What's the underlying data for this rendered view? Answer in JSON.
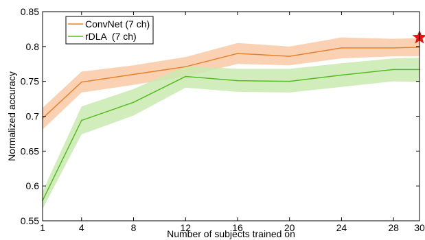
{
  "chart_data": {
    "type": "line",
    "xlabel": "Number of subjects trained on",
    "ylabel": "Normalized accuracy",
    "xlim": [
      1,
      30
    ],
    "ylim": [
      0.55,
      0.85
    ],
    "xticks": [
      1,
      4,
      8,
      12,
      16,
      20,
      24,
      28,
      30
    ],
    "yticks": [
      0.55,
      0.6,
      0.65,
      0.7,
      0.75,
      0.8,
      0.85
    ],
    "grid": false,
    "legend_position": "top-left",
    "x": [
      1,
      4,
      8,
      12,
      16,
      20,
      24,
      28,
      30
    ],
    "series": [
      {
        "name": "ConvNet (7 ch)",
        "color": "#e8822a",
        "band_color": "#f9c9a4",
        "values": [
          0.697,
          0.749,
          0.76,
          0.771,
          0.79,
          0.786,
          0.798,
          0.798,
          0.799
        ],
        "lower": [
          0.681,
          0.734,
          0.745,
          0.757,
          0.775,
          0.773,
          0.783,
          0.786,
          0.786
        ],
        "upper": [
          0.712,
          0.764,
          0.773,
          0.785,
          0.805,
          0.8,
          0.813,
          0.811,
          0.812
        ]
      },
      {
        "name": "rDLA  (7 ch)",
        "color": "#55bb22",
        "band_color": "#c9eaaf",
        "values": [
          0.579,
          0.694,
          0.72,
          0.757,
          0.751,
          0.75,
          0.759,
          0.767,
          0.767
        ],
        "lower": [
          0.567,
          0.674,
          0.701,
          0.741,
          0.735,
          0.734,
          0.742,
          0.75,
          0.749
        ],
        "upper": [
          0.592,
          0.714,
          0.739,
          0.772,
          0.768,
          0.768,
          0.776,
          0.783,
          0.784
        ]
      }
    ],
    "annotations": [
      {
        "type": "star",
        "x": 30,
        "y": 0.813,
        "color": "#ee1111"
      }
    ]
  }
}
